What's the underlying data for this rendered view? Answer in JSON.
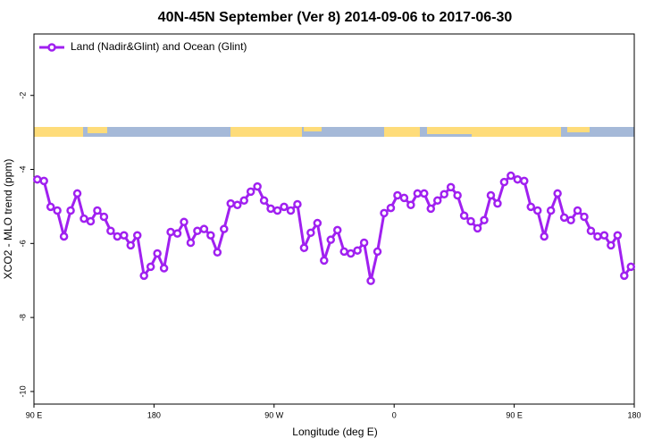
{
  "chart_data": {
    "type": "line",
    "title": "40N-45N September (Ver 8)   2014-09-06 to 2017-06-30",
    "x_label": "Longitude (deg E)",
    "y_label": "XCO2 - MLO trend (ppm)",
    "xlim": [
      90,
      540
    ],
    "ylim": [
      -10.34,
      -0.34
    ],
    "xticks": [
      {
        "value": 90,
        "label": "90 E"
      },
      180,
      {
        "value": 270,
        "label": "90 W"
      },
      {
        "value": 360,
        "label": "0"
      },
      {
        "value": 450,
        "label": "90 E"
      },
      {
        "value": 540,
        "label": "180"
      }
    ],
    "yticks": [
      -10,
      -8,
      -6,
      -4,
      -2
    ],
    "legend": "upper left",
    "x": [
      92.5,
      97.5,
      102.5,
      107.5,
      112.5,
      117.5,
      122.5,
      127.5,
      132.5,
      137.5,
      142.5,
      147.5,
      152.5,
      157.5,
      162.5,
      167.5,
      172.5,
      177.5,
      182.5,
      187.5,
      192.5,
      197.5,
      202.5,
      207.5,
      212.5,
      217.5,
      222.5,
      227.5,
      232.5,
      237.5,
      242.5,
      247.5,
      252.5,
      257.5,
      262.5,
      267.5,
      272.5,
      277.5,
      282.5,
      287.5,
      292.5,
      297.5,
      302.5,
      307.5,
      312.5,
      317.5,
      322.5,
      327.5,
      332.5,
      337.5,
      342.5,
      347.5,
      352.5,
      357.5,
      362.5,
      367.5,
      372.5,
      377.5,
      382.5,
      387.5,
      392.5,
      397.5,
      402.5,
      407.5,
      412.5,
      417.5,
      422.5,
      427.5,
      432.5,
      437.5,
      442.5,
      447.5,
      452.5,
      457.5,
      462.5,
      467.5,
      472.5,
      477.5,
      482.5,
      487.5,
      492.5,
      497.5,
      502.5,
      507.5,
      512.5,
      517.5,
      522.5,
      527.5,
      532.5,
      537.5
    ],
    "series": [
      {
        "name": "Land (Nadir&Glint) and Ocean (Glint)",
        "color": "#a020f0",
        "values": [
          -4.27,
          -4.31,
          -5.01,
          -5.11,
          -5.81,
          -5.11,
          -4.65,
          -5.33,
          -5.4,
          -5.11,
          -5.28,
          -5.66,
          -5.81,
          -5.78,
          -6.05,
          -5.78,
          -6.87,
          -6.63,
          -6.27,
          -6.67,
          -5.69,
          -5.73,
          -5.42,
          -5.98,
          -5.66,
          -5.61,
          -5.78,
          -6.24,
          -5.61,
          -4.92,
          -4.96,
          -4.84,
          -4.6,
          -4.46,
          -4.84,
          -5.06,
          -5.11,
          -5.01,
          -5.11,
          -4.94,
          -6.12,
          -5.71,
          -5.45,
          -6.46,
          -5.9,
          -5.64,
          -6.22,
          -6.27,
          -6.19,
          -5.98,
          -7.01,
          -6.22,
          -5.18,
          -5.04,
          -4.7,
          -4.77,
          -4.96,
          -4.65,
          -4.65,
          -5.06,
          -4.84,
          -4.67,
          -4.48,
          -4.7,
          -5.25,
          -5.4,
          -5.59,
          -5.37,
          -4.7,
          -4.92,
          -4.34,
          -4.17,
          -4.27,
          -4.31,
          -5.01,
          -5.11,
          -5.81,
          -5.11,
          -4.65,
          -5.3,
          -5.37,
          -5.11,
          -5.28,
          -5.66,
          -5.81,
          -5.78,
          -6.05,
          -5.78,
          -6.87,
          -6.63
        ]
      }
    ]
  }
}
